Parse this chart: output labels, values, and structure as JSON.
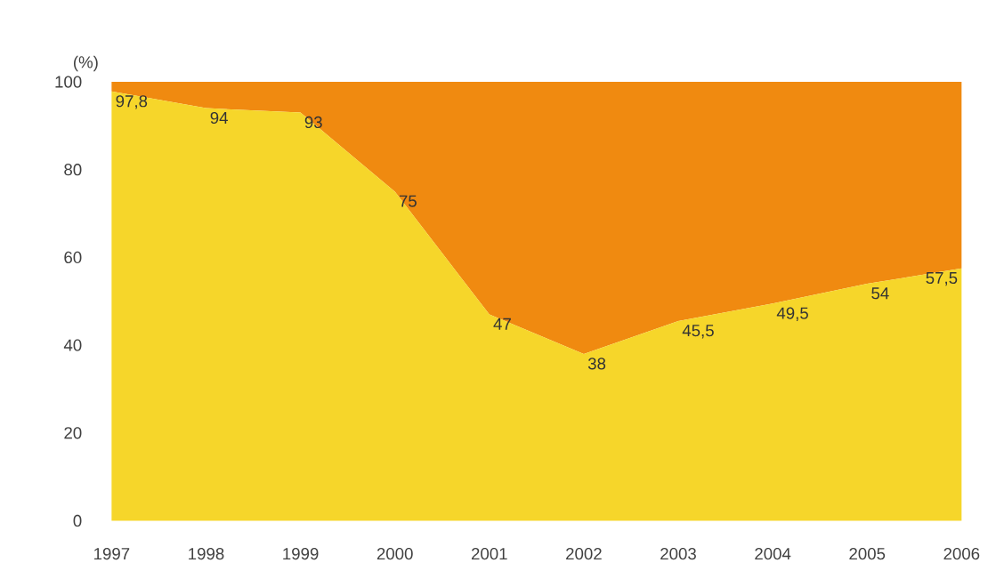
{
  "chart_data": {
    "type": "area",
    "stacked": true,
    "ylabel": "(%)",
    "categories": [
      "1997",
      "1998",
      "1999",
      "2000",
      "2001",
      "2002",
      "2003",
      "2004",
      "2005",
      "2006"
    ],
    "series": [
      {
        "color": "#f6d62a",
        "values": [
          97.8,
          94,
          93,
          75,
          47,
          38,
          45.5,
          49.5,
          54,
          57.5
        ],
        "value_labels": [
          "97,8",
          "94",
          "93",
          "75",
          "47",
          "38",
          "45,5",
          "49,5",
          "54",
          "57,5"
        ]
      },
      {
        "color": "#f08a10",
        "values": [
          2.2,
          6,
          7,
          25,
          53,
          62,
          54.5,
          50.5,
          46,
          42.5
        ]
      }
    ],
    "ylim": [
      0,
      100
    ],
    "yticks": [
      0,
      20,
      40,
      60,
      80,
      100
    ],
    "grid": false
  }
}
